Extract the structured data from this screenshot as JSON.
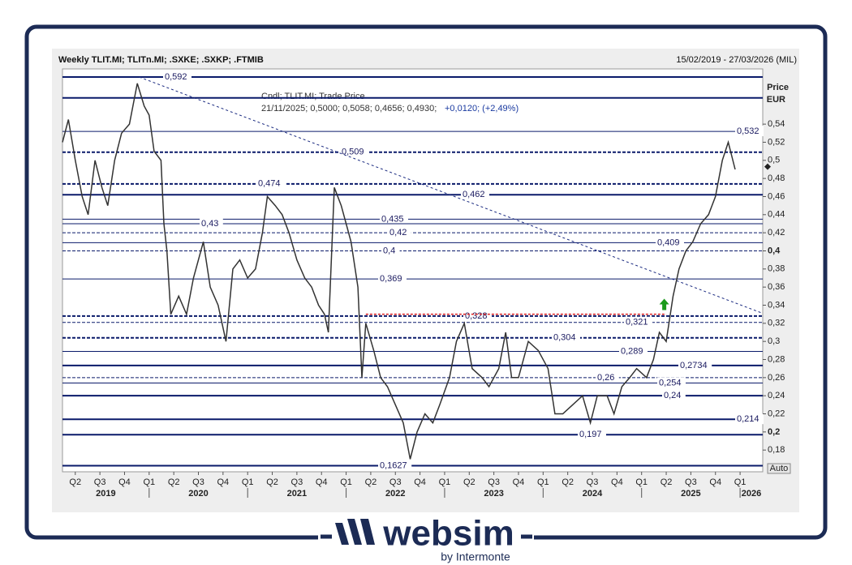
{
  "chart_data": {
    "type": "line",
    "title": "Weekly TLIT.MI; TLITn.MI; .SXKE; .SXKP; .FTMIB",
    "date_range": "15/02/2019 - 27/03/2026 (MIL)",
    "axis_title": "Price",
    "axis_unit": "EUR",
    "scale_button": "Auto",
    "info_line_1": "Cndl; TLIT.MI; Trade Price",
    "info_line_2": "21/11/2025; 0,5000; 0,5058; 0,4656; 0,4930;",
    "info_line_2_change": "+0,0120; (+2,49%)",
    "xlim": [
      2019.12,
      2026.23
    ],
    "ylim": [
      0.156,
      0.601
    ],
    "yticks": [
      {
        "value": 0.54,
        "label": "0,54"
      },
      {
        "value": 0.52,
        "label": "0,52"
      },
      {
        "value": 0.5,
        "label": "0,5"
      },
      {
        "value": 0.48,
        "label": "0,48"
      },
      {
        "value": 0.46,
        "label": "0,46"
      },
      {
        "value": 0.44,
        "label": "0,44"
      },
      {
        "value": 0.42,
        "label": "0,42"
      },
      {
        "value": 0.4,
        "label": "0,4",
        "bold": true
      },
      {
        "value": 0.38,
        "label": "0,38"
      },
      {
        "value": 0.36,
        "label": "0,36"
      },
      {
        "value": 0.34,
        "label": "0,34"
      },
      {
        "value": 0.32,
        "label": "0,32"
      },
      {
        "value": 0.3,
        "label": "0,3"
      },
      {
        "value": 0.28,
        "label": "0,28"
      },
      {
        "value": 0.26,
        "label": "0,26"
      },
      {
        "value": 0.24,
        "label": "0,24"
      },
      {
        "value": 0.22,
        "label": "0,22"
      },
      {
        "value": 0.2,
        "label": "0,2",
        "bold": true
      },
      {
        "value": 0.18,
        "label": "0,18"
      }
    ],
    "xticks": [
      {
        "value": 2019.25,
        "label": "Q2"
      },
      {
        "value": 2019.5,
        "label": "Q3"
      },
      {
        "value": 2019.75,
        "label": "Q4"
      },
      {
        "value": 2020,
        "label": "Q1"
      },
      {
        "value": 2020.25,
        "label": "Q2"
      },
      {
        "value": 2020.5,
        "label": "Q3"
      },
      {
        "value": 2020.75,
        "label": "Q4"
      },
      {
        "value": 2021,
        "label": "Q1"
      },
      {
        "value": 2021.25,
        "label": "Q2"
      },
      {
        "value": 2021.5,
        "label": "Q3"
      },
      {
        "value": 2021.75,
        "label": "Q4"
      },
      {
        "value": 2022,
        "label": "Q1"
      },
      {
        "value": 2022.25,
        "label": "Q2"
      },
      {
        "value": 2022.5,
        "label": "Q3"
      },
      {
        "value": 2022.75,
        "label": "Q4"
      },
      {
        "value": 2023,
        "label": "Q1"
      },
      {
        "value": 2023.25,
        "label": "Q2"
      },
      {
        "value": 2023.5,
        "label": "Q3"
      },
      {
        "value": 2023.75,
        "label": "Q4"
      },
      {
        "value": 2024,
        "label": "Q1"
      },
      {
        "value": 2024.25,
        "label": "Q2"
      },
      {
        "value": 2024.5,
        "label": "Q3"
      },
      {
        "value": 2024.75,
        "label": "Q4"
      },
      {
        "value": 2025,
        "label": "Q1"
      },
      {
        "value": 2025.25,
        "label": "Q2"
      },
      {
        "value": 2025.5,
        "label": "Q3"
      },
      {
        "value": 2025.75,
        "label": "Q4"
      },
      {
        "value": 2026,
        "label": "Q1"
      }
    ],
    "years": [
      2019,
      2020,
      2021,
      2022,
      2023,
      2024,
      2025,
      2026
    ],
    "levels": [
      {
        "value": 0.592,
        "label": "0,592",
        "style": "solid-thick"
      },
      {
        "value": 0.569,
        "label": null,
        "style": "solid-thick"
      },
      {
        "value": 0.532,
        "label": "0,532",
        "style": "solid"
      },
      {
        "value": 0.509,
        "label": "0,509",
        "style": "dashed-thick"
      },
      {
        "value": 0.474,
        "label": "0,474",
        "style": "dashed-thick"
      },
      {
        "value": 0.462,
        "label": "0,462",
        "style": "solid-thick"
      },
      {
        "value": 0.435,
        "label": "0,435",
        "style": "solid"
      },
      {
        "value": 0.43,
        "label": "0,43",
        "style": "solid"
      },
      {
        "value": 0.42,
        "label": "0,42",
        "style": "dashed"
      },
      {
        "value": 0.409,
        "label": "0,409",
        "style": "solid"
      },
      {
        "value": 0.4,
        "label": "0,4",
        "style": "dashed"
      },
      {
        "value": 0.369,
        "label": "0,369",
        "style": "solid"
      },
      {
        "value": 0.328,
        "label": "0,328",
        "style": "dashed-thick"
      },
      {
        "value": 0.321,
        "label": "0,321",
        "style": "dashed"
      },
      {
        "value": 0.304,
        "label": "0,304",
        "style": "dashed-thick"
      },
      {
        "value": 0.289,
        "label": "0,289",
        "style": "solid"
      },
      {
        "value": 0.2734,
        "label": "0,2734",
        "style": "solid-thick"
      },
      {
        "value": 0.26,
        "label": "0,26",
        "style": "dashed"
      },
      {
        "value": 0.254,
        "label": "0,254",
        "style": "solid"
      },
      {
        "value": 0.24,
        "label": "0,24",
        "style": "solid-thick"
      },
      {
        "value": 0.214,
        "label": "0,214",
        "style": "solid-thick"
      },
      {
        "value": 0.197,
        "label": "0,197",
        "style": "solid-thick"
      },
      {
        "value": 0.1627,
        "label": "0,1627",
        "style": "solid-thick"
      }
    ],
    "resistance": {
      "x": [
        2022.2,
        2025.25
      ],
      "y": [
        0.33,
        0.33
      ],
      "color": "#e02020"
    },
    "trendline": {
      "x": [
        2019.9,
        2026.23
      ],
      "y": [
        0.592,
        0.331
      ]
    },
    "signal": {
      "x": 2025.23,
      "y": 0.34,
      "color": "#1a9a1a"
    },
    "last": 0.493,
    "series": [
      {
        "name": "TLIT.MI",
        "color": "#333333",
        "x": [
          2019.12,
          2019.18,
          2019.25,
          2019.32,
          2019.38,
          2019.45,
          2019.52,
          2019.58,
          2019.65,
          2019.72,
          2019.8,
          2019.88,
          2019.95,
          2020.0,
          2020.05,
          2020.12,
          2020.15,
          2020.18,
          2020.22,
          2020.3,
          2020.38,
          2020.45,
          2020.55,
          2020.62,
          2020.7,
          2020.78,
          2020.85,
          2020.92,
          2021.0,
          2021.08,
          2021.15,
          2021.2,
          2021.28,
          2021.35,
          2021.42,
          2021.5,
          2021.58,
          2021.65,
          2021.72,
          2021.78,
          2021.82,
          2021.88,
          2021.95,
          2022.0,
          2022.05,
          2022.12,
          2022.16,
          2022.2,
          2022.28,
          2022.35,
          2022.42,
          2022.5,
          2022.58,
          2022.65,
          2022.72,
          2022.8,
          2022.88,
          2022.95,
          2023.05,
          2023.12,
          2023.2,
          2023.28,
          2023.38,
          2023.45,
          2023.55,
          2023.62,
          2023.68,
          2023.75,
          2023.85,
          2023.95,
          2024.05,
          2024.12,
          2024.2,
          2024.3,
          2024.4,
          2024.48,
          2024.55,
          2024.65,
          2024.72,
          2024.8,
          2024.88,
          2024.95,
          2025.05,
          2025.12,
          2025.18,
          2025.25,
          2025.32,
          2025.38,
          2025.45,
          2025.52,
          2025.6,
          2025.68,
          2025.75,
          2025.82,
          2025.88,
          2025.95
        ],
        "values": [
          0.52,
          0.545,
          0.5,
          0.46,
          0.44,
          0.5,
          0.47,
          0.45,
          0.5,
          0.53,
          0.54,
          0.585,
          0.56,
          0.55,
          0.51,
          0.5,
          0.43,
          0.4,
          0.33,
          0.35,
          0.33,
          0.37,
          0.41,
          0.36,
          0.34,
          0.3,
          0.38,
          0.39,
          0.37,
          0.38,
          0.42,
          0.46,
          0.45,
          0.44,
          0.42,
          0.39,
          0.37,
          0.36,
          0.34,
          0.33,
          0.31,
          0.47,
          0.45,
          0.43,
          0.41,
          0.36,
          0.26,
          0.32,
          0.29,
          0.26,
          0.25,
          0.23,
          0.21,
          0.17,
          0.2,
          0.22,
          0.21,
          0.23,
          0.26,
          0.3,
          0.32,
          0.27,
          0.26,
          0.25,
          0.27,
          0.31,
          0.26,
          0.26,
          0.3,
          0.29,
          0.27,
          0.22,
          0.22,
          0.23,
          0.24,
          0.21,
          0.24,
          0.24,
          0.22,
          0.25,
          0.26,
          0.27,
          0.26,
          0.28,
          0.31,
          0.3,
          0.35,
          0.38,
          0.4,
          0.41,
          0.43,
          0.44,
          0.46,
          0.5,
          0.52,
          0.49
        ]
      }
    ]
  },
  "footer": {
    "brand": "websim",
    "tagline": "by Intermonte"
  }
}
